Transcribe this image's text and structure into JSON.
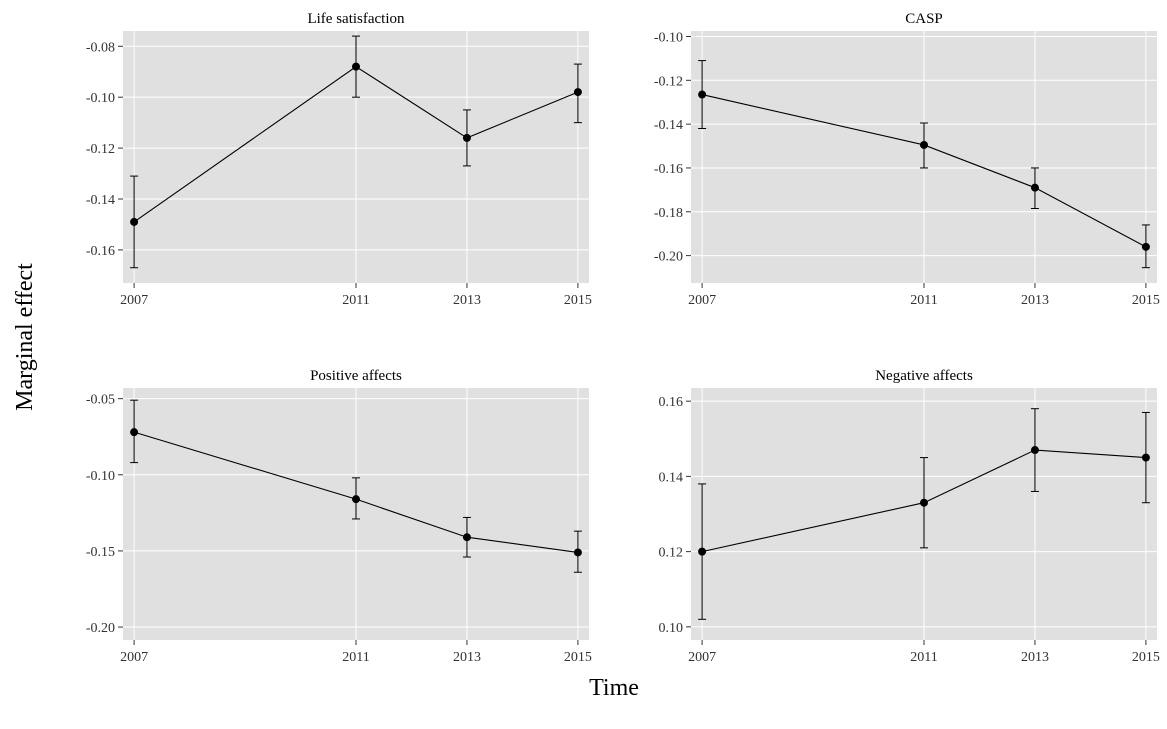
{
  "figure": {
    "ylabel": "Marginal effect",
    "xlabel": "Time"
  },
  "colors": {
    "panel_background": "#e0e0e0",
    "grid": "#ffffff",
    "series": "#000000"
  },
  "chart_data": [
    {
      "type": "line",
      "title": "Life satisfaction",
      "grid": true,
      "x": [
        2007,
        2011,
        2013,
        2015
      ],
      "xticks": [
        "2007",
        "2011",
        "2013",
        "2015"
      ],
      "xlim": [
        2006.8,
        2015.2
      ],
      "ylim": [
        -0.173,
        -0.074
      ],
      "yticks": [
        -0.16,
        -0.14,
        -0.12,
        -0.1,
        -0.08
      ],
      "ytick_labels": [
        "-0.16",
        "-0.14",
        "-0.12",
        "-0.10",
        "-0.08"
      ],
      "series": [
        {
          "values": [
            -0.149,
            -0.088,
            -0.116,
            -0.098
          ],
          "lower": [
            -0.167,
            -0.1,
            -0.127,
            -0.11
          ],
          "upper": [
            -0.131,
            -0.076,
            -0.105,
            -0.087
          ]
        }
      ]
    },
    {
      "type": "line",
      "title": "CASP",
      "grid": true,
      "x": [
        2007,
        2011,
        2013,
        2015
      ],
      "xticks": [
        "2007",
        "2011",
        "2013",
        "2015"
      ],
      "xlim": [
        2006.8,
        2015.2
      ],
      "ylim": [
        -0.2125,
        -0.0975
      ],
      "yticks": [
        -0.2,
        -0.18,
        -0.16,
        -0.14,
        -0.12,
        -0.1
      ],
      "ytick_labels": [
        "-0.20",
        "-0.18",
        "-0.16",
        "-0.14",
        "-0.12",
        "-0.10"
      ],
      "series": [
        {
          "values": [
            -0.1265,
            -0.1495,
            -0.169,
            -0.196
          ],
          "lower": [
            -0.142,
            -0.16,
            -0.1785,
            -0.2055
          ],
          "upper": [
            -0.111,
            -0.1395,
            -0.16,
            -0.186
          ]
        }
      ]
    },
    {
      "type": "line",
      "title": "Positive affects",
      "grid": true,
      "x": [
        2007,
        2011,
        2013,
        2015
      ],
      "xticks": [
        "2007",
        "2011",
        "2013",
        "2015"
      ],
      "xlim": [
        2006.8,
        2015.2
      ],
      "ylim": [
        -0.2085,
        -0.043
      ],
      "yticks": [
        -0.2,
        -0.15,
        -0.1,
        -0.05
      ],
      "ytick_labels": [
        "-0.20",
        "-0.15",
        "-0.10",
        "-0.05"
      ],
      "series": [
        {
          "values": [
            -0.072,
            -0.116,
            -0.141,
            -0.151
          ],
          "lower": [
            -0.092,
            -0.129,
            -0.154,
            -0.164
          ],
          "upper": [
            -0.051,
            -0.102,
            -0.128,
            -0.137
          ]
        }
      ]
    },
    {
      "type": "line",
      "title": "Negative affects",
      "grid": true,
      "x": [
        2007,
        2011,
        2013,
        2015
      ],
      "xticks": [
        "2007",
        "2011",
        "2013",
        "2015"
      ],
      "xlim": [
        2006.8,
        2015.2
      ],
      "ylim": [
        0.0965,
        0.1635
      ],
      "yticks": [
        0.1,
        0.12,
        0.14,
        0.16
      ],
      "ytick_labels": [
        "0.10",
        "0.12",
        "0.14",
        "0.16"
      ],
      "series": [
        {
          "values": [
            0.12,
            0.133,
            0.147,
            0.145
          ],
          "lower": [
            0.102,
            0.121,
            0.136,
            0.133
          ],
          "upper": [
            0.138,
            0.145,
            0.158,
            0.157
          ]
        }
      ]
    }
  ]
}
